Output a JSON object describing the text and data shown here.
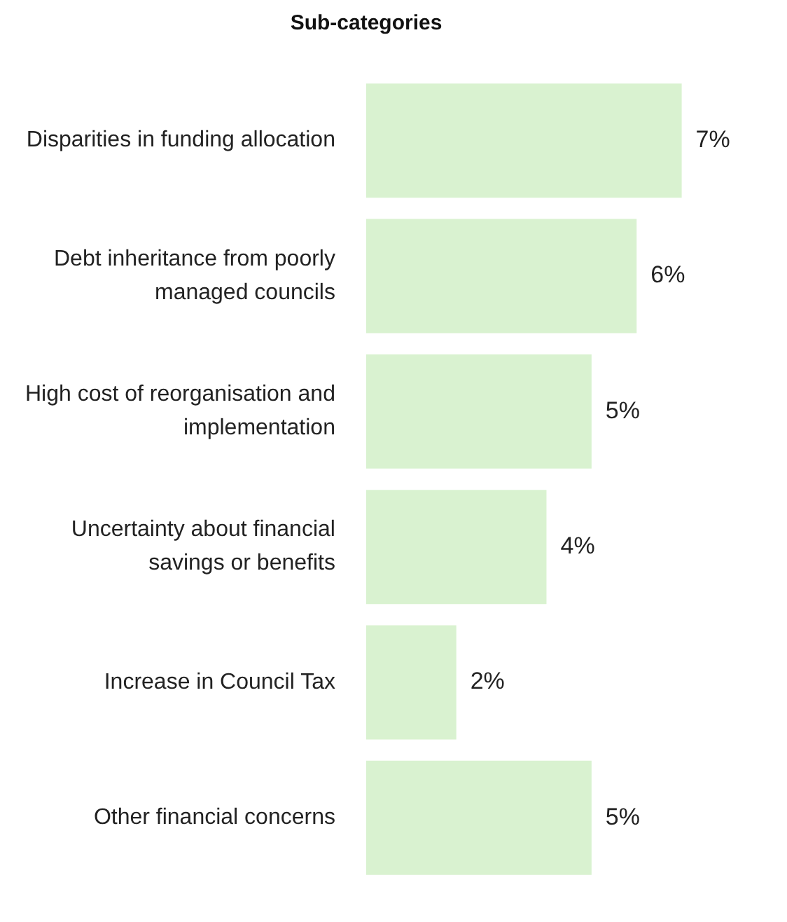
{
  "chart_data": {
    "type": "bar",
    "orientation": "horizontal",
    "title": "Sub-categories",
    "categories": [
      "Disparities in funding allocation",
      "Debt inheritance from poorly managed councils",
      "High cost of reorganisation and implementation",
      "Uncertainty about financial savings or benefits",
      "Increase in Council Tax",
      "Other financial concerns"
    ],
    "values": [
      7,
      6,
      5,
      4,
      2,
      5
    ],
    "value_labels": [
      "7%",
      "6%",
      "5%",
      "4%",
      "2%",
      "5%"
    ],
    "color": "#d9f2d0"
  }
}
